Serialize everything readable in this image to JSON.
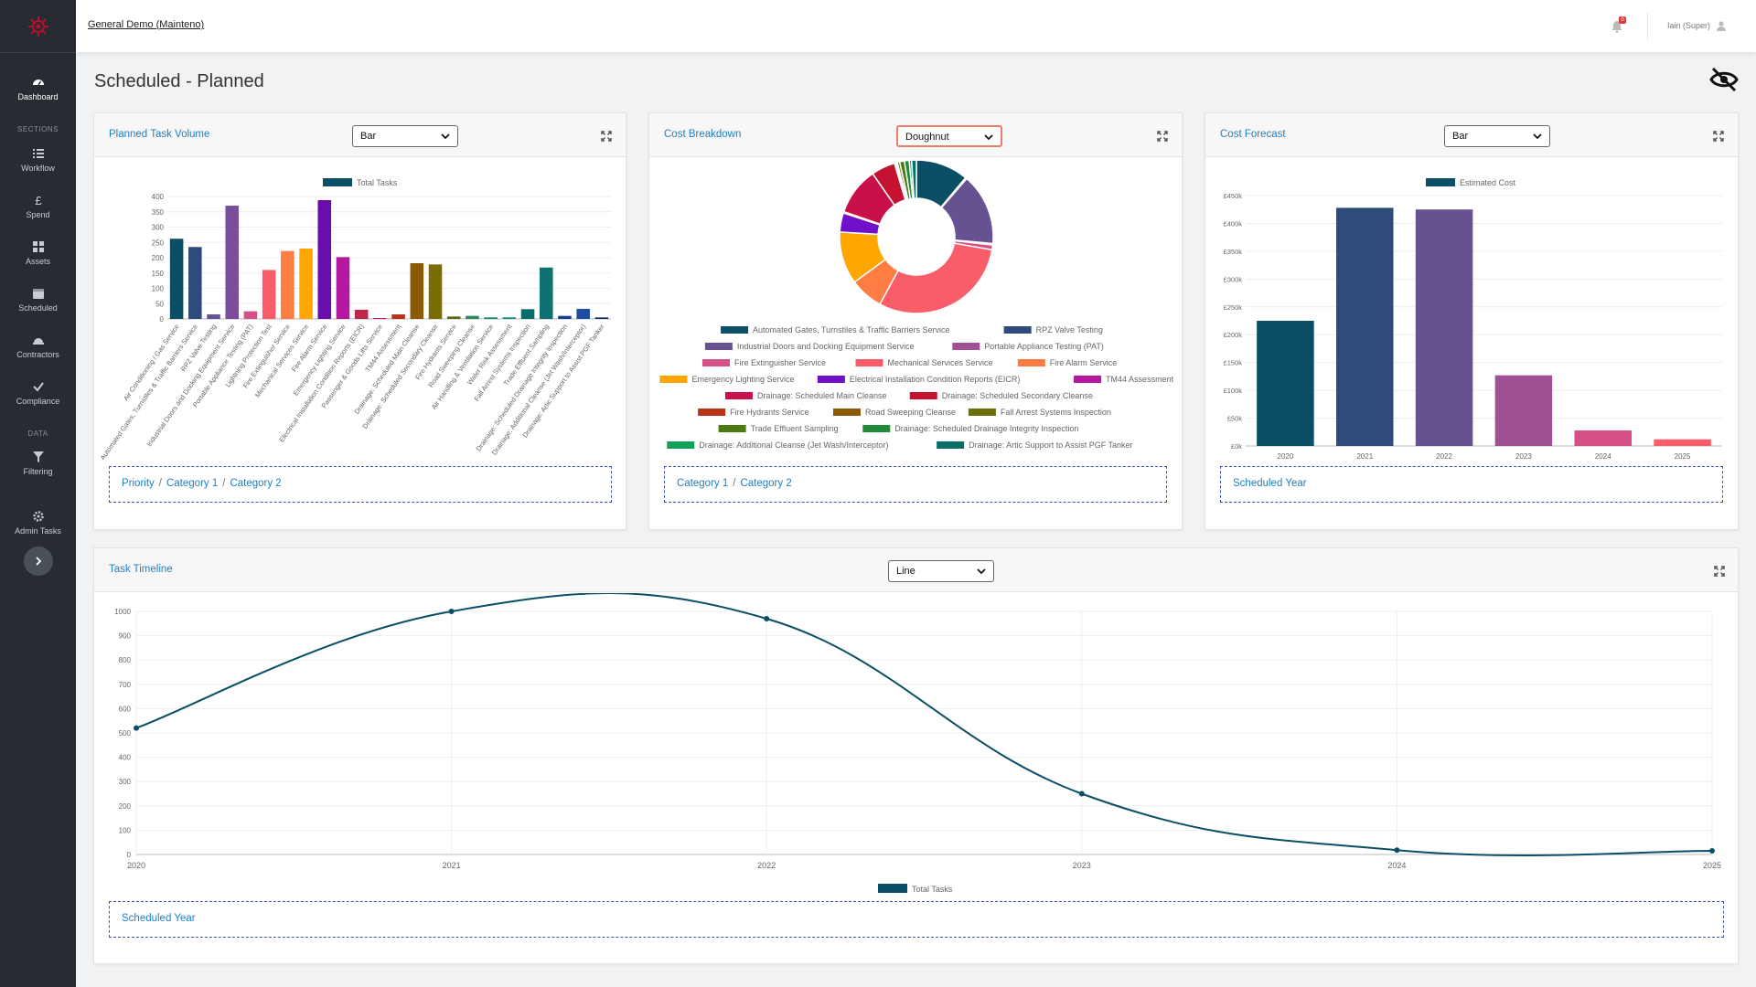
{
  "topbar": {
    "org": "General Demo (Mainteno)",
    "notifications": "0",
    "user": "Iain (Super)"
  },
  "page": {
    "title": "Scheduled - Planned"
  },
  "sidebar": {
    "items": [
      {
        "label": "Dashboard",
        "icon": "gauge-icon"
      },
      {
        "label": "Workflow",
        "icon": "list-icon"
      },
      {
        "label": "Spend",
        "icon": "pound-icon"
      },
      {
        "label": "Assets",
        "icon": "grid-icon"
      },
      {
        "label": "Scheduled",
        "icon": "calendar-icon"
      },
      {
        "label": "Contractors",
        "icon": "hardhat-icon"
      },
      {
        "label": "Compliance",
        "icon": "check-icon"
      },
      {
        "label": "Filtering",
        "icon": "filter-icon"
      },
      {
        "label": "Admin Tasks",
        "icon": "gear-icon"
      }
    ],
    "sections": {
      "s1": "SECTIONS",
      "s2": "DATA"
    }
  },
  "cards": {
    "volume": {
      "title": "Planned Task Volume",
      "select": "Bar",
      "crumbs": [
        "Priority",
        "Category 1",
        "Category 2"
      ]
    },
    "cost": {
      "title": "Cost Breakdown",
      "select": "Doughnut",
      "crumbs": [
        "Category 1",
        "Category 2"
      ]
    },
    "forecast": {
      "title": "Cost Forecast",
      "select": "Bar",
      "crumbs": [
        "Scheduled Year"
      ]
    },
    "timeline": {
      "title": "Task Timeline",
      "select": "Line",
      "crumbs": [
        "Scheduled Year"
      ]
    }
  },
  "chart_data": [
    {
      "type": "bar",
      "legend": "Total Tasks",
      "ylim": [
        0,
        400
      ],
      "yticks": [
        0,
        50,
        100,
        150,
        200,
        250,
        300,
        350,
        400
      ],
      "categories": [
        "Air Conditioning / Gas Service",
        "Automated Gates, Turnstiles & Traffic Barriers Service",
        "RPZ Valve Testing",
        "Industrial Doors and Docking Equipment Service",
        "Portable Appliance Testing (PAT)",
        "Lightning Protection Test",
        "Fire Extinguisher Service",
        "Mechanical Services Service",
        "Fire Alarm Service",
        "Emergency Lighting Service",
        "Electrical Installation Condition Reports (EICR)",
        "Passenger & Goods Lifts Service",
        "TM44 Assessment",
        "Drainage: Scheduled Main Cleanse",
        "Drainage: Scheduled Secondary Cleanse",
        "Fire Hydrants Service",
        "Road Sweeping Cleanse",
        "Air Handling & Ventilation Service",
        "Water Risk Assessment",
        "Fall Arrest Systems Inspection",
        "Trade Effluent Sampling",
        "Drainage: Scheduled Drainage Integrity Inspection",
        "Drainage: Additional Cleanse (Jet Wash/Interceptor)",
        "Drainage: Artic Support to Assist PGF Tanker"
      ],
      "values": [
        262,
        235,
        15,
        370,
        25,
        160,
        222,
        230,
        388,
        202,
        30,
        3,
        15,
        182,
        178,
        8,
        10,
        5,
        5,
        32,
        168,
        10,
        33,
        5
      ],
      "colors": [
        "#0b4f66",
        "#2f4b7c",
        "#665191",
        "#7a4f9a",
        "#d45087",
        "#f95d6a",
        "#ff7c43",
        "#ffa600",
        "#6a0dad",
        "#b5179e",
        "#c0254a",
        "#d4145a",
        "#b5341b",
        "#8a5a06",
        "#7a6d05",
        "#556b10",
        "#2e8b57",
        "#138b5f",
        "#0b8a7a",
        "#0a6f68",
        "#0e7270",
        "#1b3d8c",
        "#1e4da0",
        "#0f2f73"
      ]
    },
    {
      "type": "pie",
      "variant": "doughnut",
      "slices": [
        {
          "label": "Automated Gates, Turnstiles & Traffic Barriers Service",
          "value": 11,
          "color": "#0b4f66"
        },
        {
          "label": "RPZ Valve Testing",
          "value": 0.3,
          "color": "#2f4b7c"
        },
        {
          "label": "Industrial Doors and Docking Equipment Service",
          "value": 15,
          "color": "#665191"
        },
        {
          "label": "Portable Appliance Testing (PAT)",
          "value": 0.3,
          "color": "#a05195"
        },
        {
          "label": "Fire Extinguisher Service",
          "value": 1,
          "color": "#d45087"
        },
        {
          "label": "Mechanical Services Service",
          "value": 30,
          "color": "#f95d6a"
        },
        {
          "label": "Fire Alarm Service",
          "value": 7,
          "color": "#ff7c43"
        },
        {
          "label": "Emergency Lighting Service",
          "value": 11,
          "color": "#ffa600"
        },
        {
          "label": "Electrical Installation Condition Reports (EICR)",
          "value": 4,
          "color": "#7010c8"
        },
        {
          "label": "TM44 Assessment",
          "value": 0.3,
          "color": "#b5179e"
        },
        {
          "label": "Drainage: Scheduled Main Cleanse",
          "value": 10,
          "color": "#c8104a"
        },
        {
          "label": "Drainage: Scheduled Secondary Cleanse",
          "value": 5,
          "color": "#c41230"
        },
        {
          "label": "Fire Hydrants Service",
          "value": 0.3,
          "color": "#b8351a"
        },
        {
          "label": "Road Sweeping Cleanse",
          "value": 0.3,
          "color": "#8a5a06"
        },
        {
          "label": "Fall Arrest Systems Inspection",
          "value": 0.5,
          "color": "#6b6f05"
        },
        {
          "label": "Trade Effluent Sampling",
          "value": 1,
          "color": "#4a7a10"
        },
        {
          "label": "Drainage: Scheduled Drainage Integrity Inspection",
          "value": 1,
          "color": "#1f8a3a"
        },
        {
          "label": "Drainage: Additional Cleanse (Jet Wash/Interceptor)",
          "value": 0.5,
          "color": "#0fa05a"
        },
        {
          "label": "Drainage: Artic Support to Assist PGF Tanker",
          "value": 1,
          "color": "#0a6f68"
        }
      ]
    },
    {
      "type": "bar",
      "legend": "Estimated Cost",
      "categories": [
        "2020",
        "2021",
        "2022",
        "2023",
        "2024",
        "2025"
      ],
      "values": [
        225000,
        428000,
        425000,
        127000,
        28000,
        12000
      ],
      "colors": [
        "#0b4f66",
        "#2f4b7c",
        "#665191",
        "#a05195",
        "#d45087",
        "#f95d6a"
      ],
      "ylim": [
        0,
        450000
      ],
      "ytick_labels": [
        "£0k",
        "£50k",
        "£100k",
        "£150k",
        "£200k",
        "£250k",
        "£300k",
        "£350k",
        "£400k",
        "£450k"
      ]
    },
    {
      "type": "line",
      "legend": "Total Tasks",
      "x": [
        "2020",
        "2021",
        "2022",
        "2023",
        "2024",
        "2025"
      ],
      "values": [
        520,
        1000,
        970,
        250,
        18,
        15
      ],
      "ylim": [
        0,
        1000
      ],
      "yticks": [
        0,
        100,
        200,
        300,
        400,
        500,
        600,
        700,
        800,
        900,
        1000
      ],
      "color": "#0b4f66"
    }
  ]
}
